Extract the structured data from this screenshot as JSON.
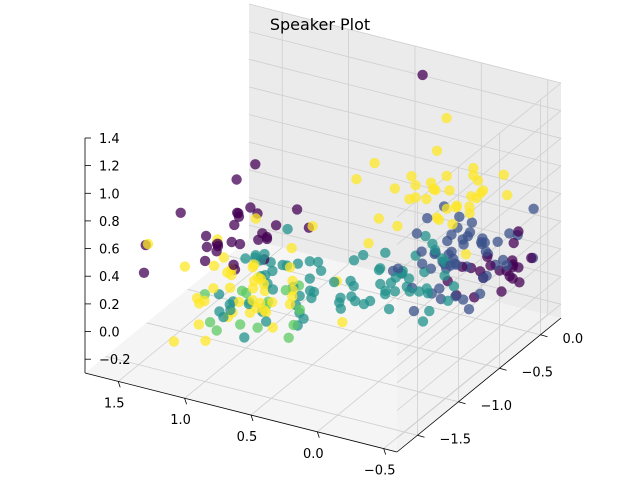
{
  "chart_data": {
    "type": "scatter",
    "projection": "3d",
    "title": "Speaker Plot",
    "xlabel": "",
    "ylabel": "",
    "zlabel": "",
    "xlim": [
      -0.6,
      1.75
    ],
    "ylim": [
      -1.75,
      0.25
    ],
    "zlim": [
      -0.3,
      1.4
    ],
    "x_ticks": [
      "−0.5",
      "0.0",
      "0.5",
      "1.0",
      "1.5"
    ],
    "y_ticks": [
      "−1.5",
      "−1.0",
      "−0.5",
      "0.0"
    ],
    "z_ticks": [
      "−0.2",
      "0.0",
      "0.2",
      "0.4",
      "0.6",
      "0.8",
      "1.0",
      "1.2",
      "1.4"
    ],
    "grid": true,
    "legend": "none",
    "colormap": "viridis",
    "colormap_colors": [
      "#440154",
      "#3b528b",
      "#21918c",
      "#5ec962",
      "#fde725"
    ],
    "pane_color": "#f2f2f2",
    "grid_color": "#cfcfcf",
    "series": [
      {
        "color": "#440154",
        "clusters": [
          {
            "center": [
              -0.45,
              -0.2,
              0.2
            ],
            "spread": [
              0.15,
              0.15,
              0.08
            ],
            "count": 22
          },
          {
            "center": [
              1.3,
              -0.7,
              0.3
            ],
            "spread": [
              0.2,
              0.25,
              0.12
            ],
            "count": 30
          },
          {
            "center": [
              0.35,
              0.1,
              1.3
            ],
            "spread": [
              0.0,
              0.0,
              0.0
            ],
            "count": 1
          }
        ]
      },
      {
        "color": "#3b528b",
        "clusters": [
          {
            "center": [
              -0.15,
              -0.3,
              0.3
            ],
            "spread": [
              0.2,
              0.22,
              0.12
            ],
            "count": 55
          }
        ]
      },
      {
        "color": "#21918c",
        "clusters": [
          {
            "center": [
              0.1,
              -0.6,
              0.25
            ],
            "spread": [
              0.22,
              0.25,
              0.1
            ],
            "count": 40
          },
          {
            "center": [
              0.75,
              -0.9,
              0.15
            ],
            "spread": [
              0.2,
              0.25,
              0.1
            ],
            "count": 40
          }
        ]
      },
      {
        "color": "#5ec962",
        "clusters": [
          {
            "center": [
              0.8,
              -1.1,
              0.05
            ],
            "spread": [
              0.2,
              0.2,
              0.08
            ],
            "count": 15
          }
        ]
      },
      {
        "color": "#fde725",
        "clusters": [
          {
            "center": [
              0.05,
              -0.15,
              0.6
            ],
            "spread": [
              0.2,
              0.18,
              0.15
            ],
            "count": 35
          },
          {
            "center": [
              0.85,
              -1.05,
              0.2
            ],
            "spread": [
              0.25,
              0.25,
              0.12
            ],
            "count": 45
          },
          {
            "center": [
              0.2,
              0.15,
              1.0
            ],
            "spread": [
              0.0,
              0.0,
              0.0
            ],
            "count": 1
          }
        ]
      }
    ]
  }
}
